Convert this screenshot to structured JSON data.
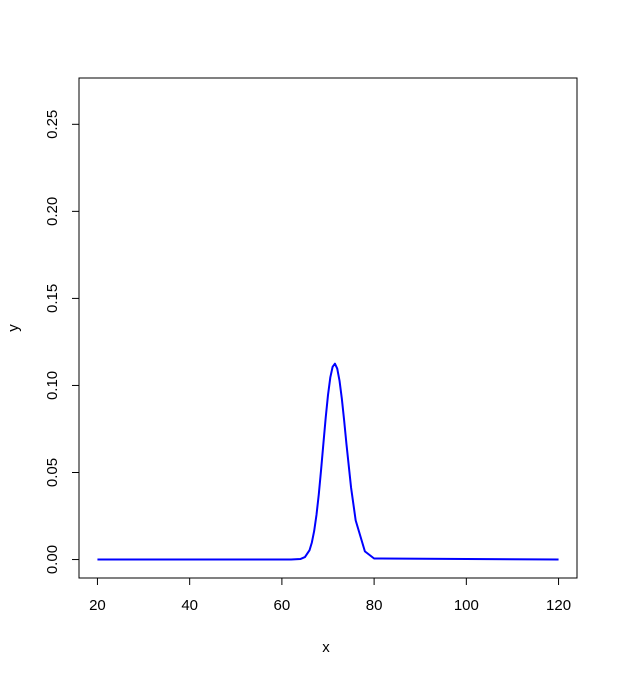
{
  "chart_data": {
    "type": "line",
    "title": "",
    "xlabel": "x",
    "ylabel": "y",
    "xlim": [
      16,
      124
    ],
    "ylim": [
      -0.0106,
      0.2766
    ],
    "x_ticks": [
      20,
      40,
      60,
      80,
      100,
      120
    ],
    "x_tick_labels": [
      "20",
      "40",
      "60",
      "80",
      "100",
      "120"
    ],
    "y_ticks": [
      0.0,
      0.05,
      0.1,
      0.15,
      0.2,
      0.25
    ],
    "y_tick_labels": [
      "0.00",
      "0.05",
      "0.10",
      "0.15",
      "0.20",
      "0.25"
    ],
    "grid": false,
    "legend": "none",
    "series_color": "#0000ff",
    "series": [
      {
        "x": [
          20,
          60,
          62,
          64,
          65,
          66,
          66.5,
          67,
          67.5,
          68,
          68.5,
          69,
          69.5,
          70,
          70.5,
          71,
          71.5,
          72,
          72.5,
          73,
          73.5,
          74,
          75,
          76,
          78,
          80,
          120
        ],
        "y": [
          0.0,
          0.0,
          0.0,
          0.0003,
          0.0014,
          0.0054,
          0.0098,
          0.0164,
          0.0256,
          0.0374,
          0.0515,
          0.0666,
          0.0814,
          0.0945,
          0.1046,
          0.1107,
          0.1125,
          0.1097,
          0.1027,
          0.0924,
          0.0799,
          0.0664,
          0.0414,
          0.0225,
          0.0047,
          0.0006,
          0.0
        ]
      }
    ]
  }
}
